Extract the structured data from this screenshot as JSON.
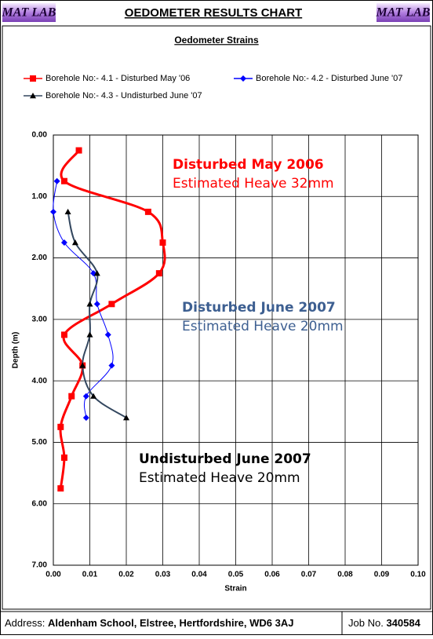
{
  "header": {
    "logo_left": "MAT LAB",
    "title": "OEDOMETER RESULTS CHART",
    "logo_right": "MAT LAB"
  },
  "chart_data": {
    "type": "line",
    "title": "Oedometer Strains",
    "xlabel": "Strain",
    "ylabel": "Depth (m)",
    "xlim": [
      0,
      0.1
    ],
    "ylim": [
      0,
      7
    ],
    "y_inverted": true,
    "grid": true,
    "smooth": true,
    "xticks": [
      {
        "value": 0,
        "label": "0.00"
      },
      {
        "value": 0.01,
        "label": "0.01"
      },
      {
        "value": 0.02,
        "label": "0.02"
      },
      {
        "value": 0.03,
        "label": "0.03"
      },
      {
        "value": 0.04,
        "label": "0.04"
      },
      {
        "value": 0.05,
        "label": "0.05"
      },
      {
        "value": 0.06,
        "label": "0.06"
      },
      {
        "value": 0.07,
        "label": "0.07"
      },
      {
        "value": 0.08,
        "label": "0.08"
      },
      {
        "value": 0.09,
        "label": "0.09"
      },
      {
        "value": 0.1,
        "label": "0.10"
      }
    ],
    "yticks": [
      {
        "value": 0,
        "label": "0.00"
      },
      {
        "value": 1,
        "label": "1.00"
      },
      {
        "value": 2,
        "label": "2.00"
      },
      {
        "value": 3,
        "label": "3.00"
      },
      {
        "value": 4,
        "label": "4.00"
      },
      {
        "value": 5,
        "label": "5.00"
      },
      {
        "value": 6,
        "label": "6.00"
      },
      {
        "value": 7,
        "label": "7.00"
      }
    ],
    "series": [
      {
        "name": "Borehole No:- 4.1 - Disturbed May '06",
        "color": "#ff0000",
        "marker": "square",
        "width": 3,
        "x": [
          0.007,
          0.003,
          0.026,
          0.03,
          0.029,
          0.016,
          0.003,
          0.008,
          0.005,
          0.002,
          0.003,
          0.002
        ],
        "y": [
          0.25,
          0.75,
          1.25,
          1.75,
          2.25,
          2.75,
          3.25,
          3.75,
          4.25,
          4.75,
          5.25,
          5.75
        ]
      },
      {
        "name": "Borehole No:- 4.2 - Disturbed June '07",
        "color": "#0000ff",
        "marker": "diamond",
        "width": 1,
        "x": [
          0.001,
          0,
          0.003,
          0.011,
          0.012,
          0.015,
          0.016,
          0.009,
          0.009
        ],
        "y": [
          0.75,
          1.25,
          1.75,
          2.25,
          2.75,
          3.25,
          3.75,
          4.25,
          4.6
        ]
      },
      {
        "name": "Borehole No:- 4.3 - Undisturbed June '07",
        "color": "#33475f",
        "marker": "triangle",
        "width": 2,
        "x": [
          0.004,
          0.006,
          0.012,
          0.01,
          0.01,
          0.008,
          0.011,
          0.02
        ],
        "y": [
          1.25,
          1.75,
          2.25,
          2.75,
          3.25,
          3.75,
          4.25,
          4.6
        ]
      }
    ],
    "annotations": [
      {
        "lines": [
          "Disturbed May 2006",
          "Estimated Heave 32mm"
        ],
        "color": "#ff0000"
      },
      {
        "lines": [
          "Disturbed June 2007",
          "Estimated Heave 20mm"
        ],
        "color": "#3d5f91"
      },
      {
        "lines": [
          "Undisturbed June 2007",
          "Estimated Heave 20mm"
        ],
        "color": "#000000"
      }
    ]
  },
  "footer": {
    "address_label": "Address:",
    "address": "Aldenham School, Elstree, Hertfordshire, WD6 3AJ",
    "job_label": "Job No.",
    "job_number": "340584"
  }
}
